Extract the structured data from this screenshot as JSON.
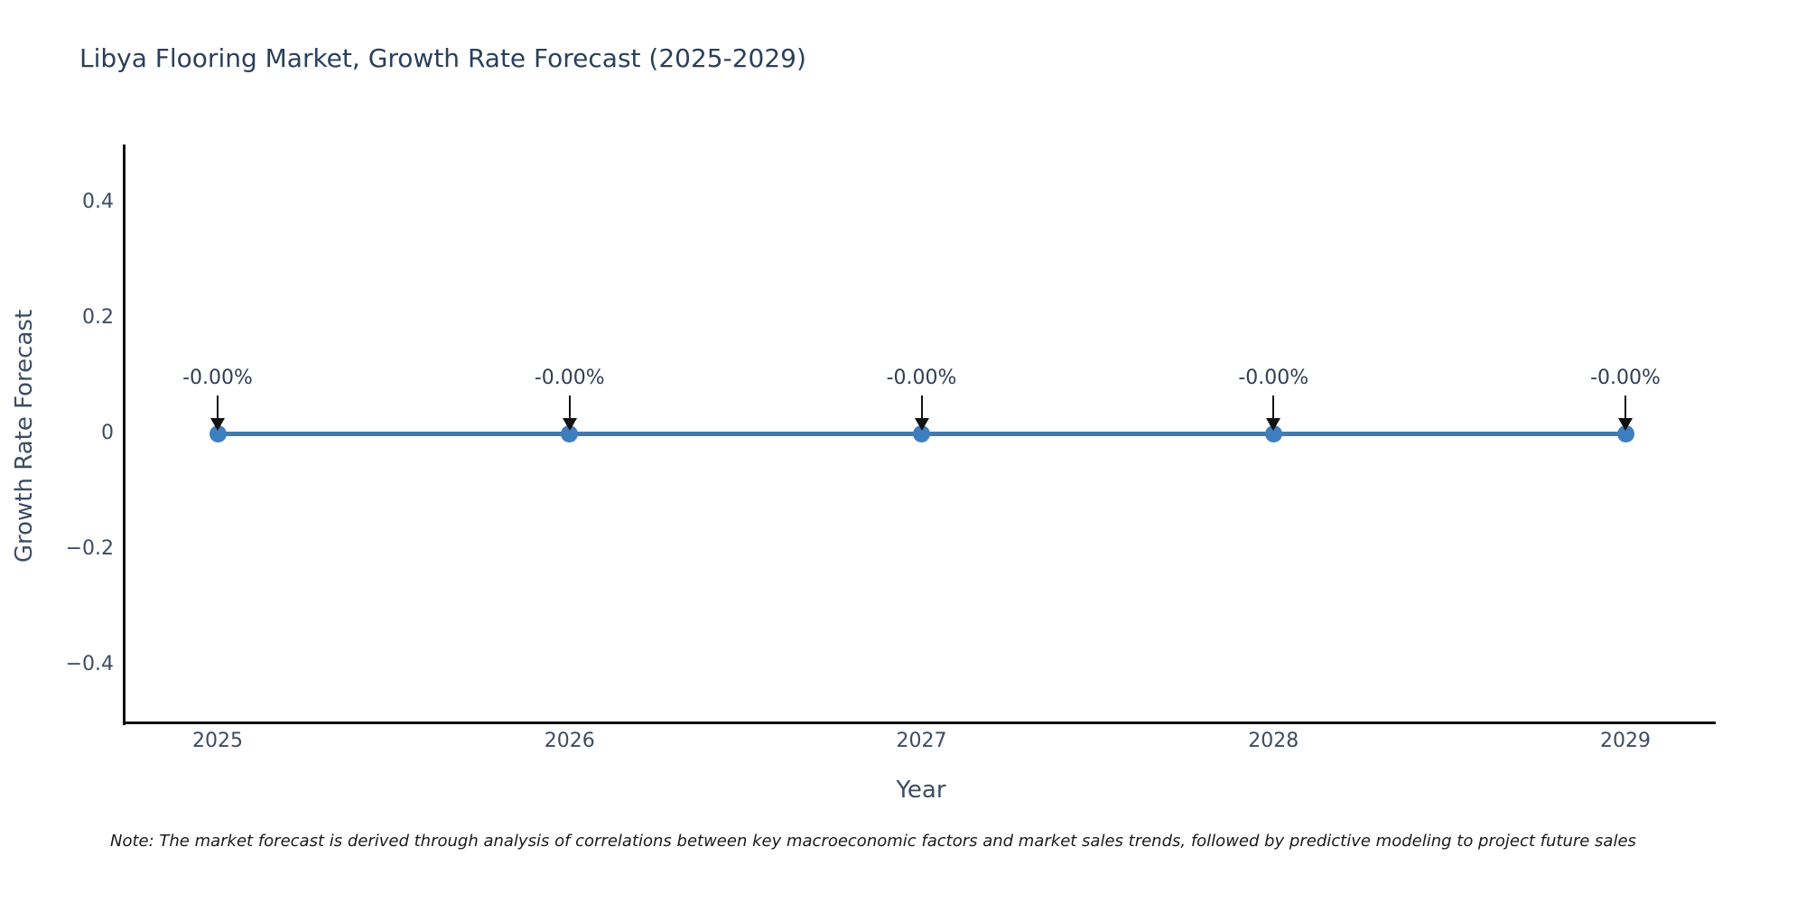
{
  "title": "Libya Flooring Market, Growth Rate Forecast (2025-2029)",
  "y_axis": {
    "label": "Growth Rate Forecast",
    "ticks": [
      {
        "label": "0.4",
        "value": 0.4
      },
      {
        "label": "0.2",
        "value": 0.2
      },
      {
        "label": "0",
        "value": 0
      },
      {
        "label": "−0.2",
        "value": -0.2
      },
      {
        "label": "−0.4",
        "value": -0.4
      }
    ]
  },
  "x_axis": {
    "label": "Year",
    "ticks": [
      "2025",
      "2026",
      "2027",
      "2028",
      "2029"
    ]
  },
  "note": "Note: The market forecast is derived through analysis of correlations between key macroeconomic factors and market sales trends, followed by predictive modeling to project future sales",
  "colors": {
    "title_text": "#2b3f5c",
    "axis_text": "#3d4c63",
    "axis_line": "#111111",
    "series_line": "#4379ad",
    "marker_fill": "#3d7ec0",
    "annotation_text": "#2f3e53",
    "annotation_arrow": "#111111",
    "note_text": "#1a1a1a",
    "background": "#ffffff"
  },
  "chart_data": {
    "type": "line",
    "title": "Libya Flooring Market, Growth Rate Forecast (2025-2029)",
    "xlabel": "Year",
    "ylabel": "Growth Rate Forecast",
    "x": [
      2025,
      2026,
      2027,
      2028,
      2029
    ],
    "series": [
      {
        "name": "Growth Rate Forecast",
        "values": [
          0,
          0,
          0,
          0,
          0
        ]
      }
    ],
    "point_labels": [
      "-0.00%",
      "-0.00%",
      "-0.00%",
      "-0.00%",
      "-0.00%"
    ],
    "ylim": [
      -0.5,
      0.5
    ],
    "yticks": [
      0.4,
      0.2,
      0,
      -0.2,
      -0.4
    ],
    "grid": false,
    "legend": false,
    "marker": "circle",
    "annotation_arrows": "down-arrow from label to each point"
  }
}
